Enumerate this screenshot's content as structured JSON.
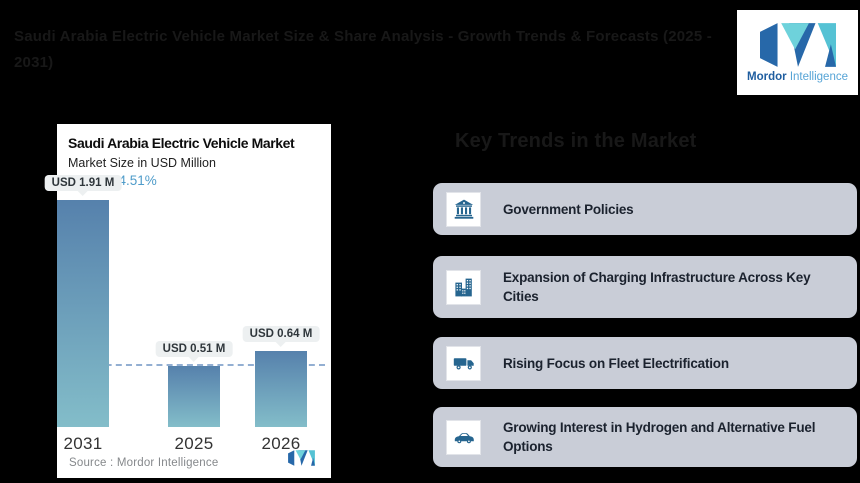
{
  "page": {
    "background": "#000000"
  },
  "header": {
    "title": "Saudi Arabia Electric Vehicle Market Size & Share Analysis - Growth Trends & Forecasts (2025 - 2031)",
    "logo": {
      "brand_bold": "Mordor",
      "brand_light": "Intelligence"
    }
  },
  "chart_card": {
    "title": "Saudi Arabia Electric Vehicle Market",
    "subtitle": "Market Size in USD Million",
    "cagr_label": "CAGR",
    "cagr_value": "24.51%",
    "source_label": "Source :  Mordor Intelligence"
  },
  "chart_data": {
    "type": "bar",
    "title": "Saudi Arabia Electric Vehicle Market",
    "subtitle": "Market Size in USD Million",
    "unit": "USD Million",
    "cagr_percent": 24.51,
    "categories": [
      "2025",
      "2026",
      "2031"
    ],
    "values": [
      0.51,
      0.64,
      1.91
    ],
    "value_labels": [
      "USD 0.51 M",
      "USD 0.64 M",
      "USD 1.91 M"
    ],
    "ylim": [
      0,
      1.91
    ],
    "reference_line": 0.51,
    "grid": false,
    "bar_gradient_top": "#5681ac",
    "bar_gradient_bottom": "#83bdc9",
    "reference_line_color": "#93afd2",
    "source": "Mordor Intelligence"
  },
  "trends_panel": {
    "heading": "Key Trends in the Market",
    "items": [
      {
        "icon": "government-bank-icon",
        "label": "Government Policies"
      },
      {
        "icon": "city-buildings-icon",
        "label": "Expansion of Charging Infrastructure Across Key Cities"
      },
      {
        "icon": "truck-icon",
        "label": "Rising Focus on Fleet Electrification"
      },
      {
        "icon": "car-icon",
        "label": "Growing Interest in Hydrogen and Alternative Fuel Options"
      }
    ],
    "row_background": "#c9cdd7",
    "icon_color": "#26658f"
  },
  "colors": {
    "cagr_accent": "#4f9cca",
    "logo_dark_blue": "#2768a9",
    "logo_teal": "#6ed2db",
    "logo_teal_dark": "#55c2d4",
    "pill_background": "#edf0f1"
  }
}
